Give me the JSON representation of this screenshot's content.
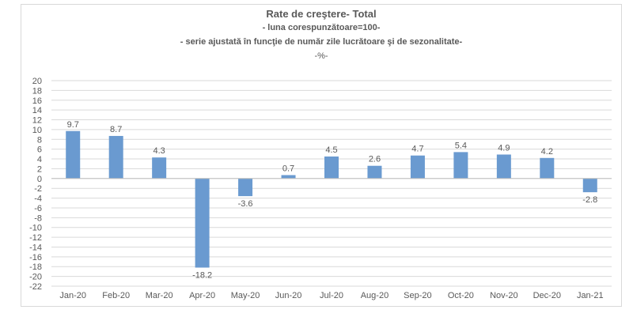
{
  "chart_data": {
    "type": "bar",
    "title": "Rate de creştere- Total",
    "subtitle_lines": [
      "- luna corespunzătoare=100-",
      "- serie ajustată în funcţie de număr zile lucrătoare şi de sezonalitate-",
      "-%-"
    ],
    "categories": [
      "Jan-20",
      "Feb-20",
      "Mar-20",
      "Apr-20",
      "May-20",
      "Jun-20",
      "Jul-20",
      "Aug-20",
      "Sep-20",
      "Oct-20",
      "Nov-20",
      "Dec-20",
      "Jan-21"
    ],
    "values": [
      9.7,
      8.7,
      4.3,
      -18.2,
      -3.6,
      0.7,
      4.5,
      2.6,
      4.7,
      5.4,
      4.9,
      4.2,
      -2.8
    ],
    "data_labels": [
      "9.7",
      "8.7",
      "4.3",
      "-18.2",
      "-3.6",
      "0.7",
      "4.5",
      "2.6",
      "4.7",
      "5.4",
      "4.9",
      "4.2",
      "-2.8"
    ],
    "ylim": [
      -22,
      20
    ],
    "ytick_step": 2,
    "grid": true,
    "legend": "none",
    "bar_color": "#6a9ad0",
    "grid_color": "#d9d9d9"
  }
}
